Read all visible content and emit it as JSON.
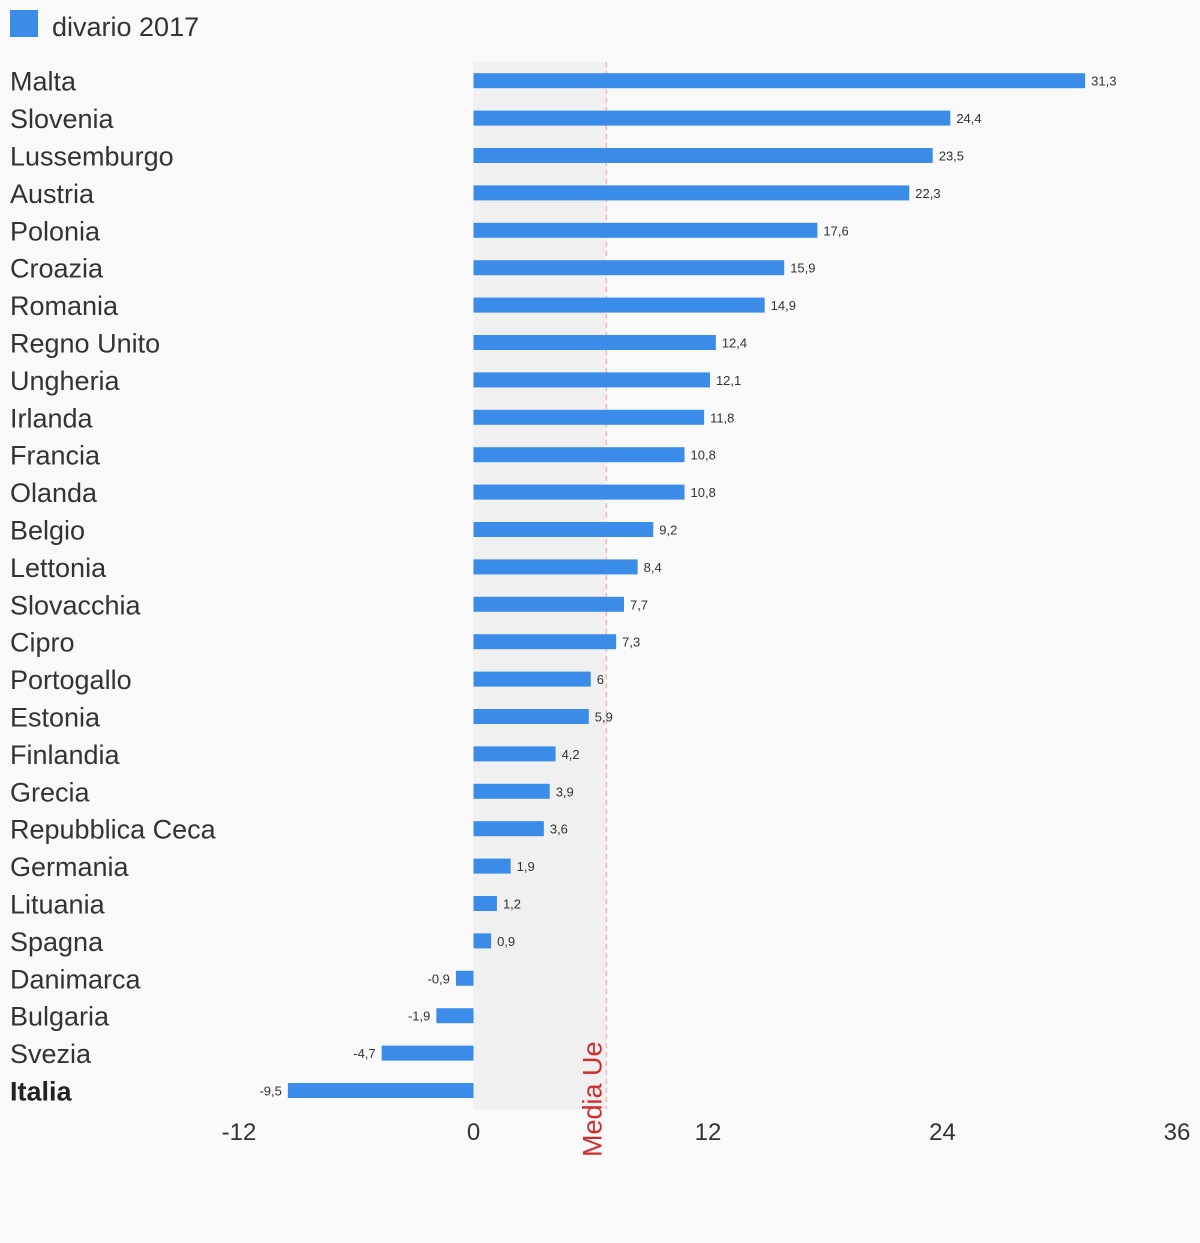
{
  "chart_data": {
    "type": "bar",
    "orientation": "horizontal",
    "legend": {
      "position": "top-left",
      "label": "divario 2017"
    },
    "series": [
      {
        "name": "divario 2017",
        "color": "#3a8ce8",
        "values": [
          31.3,
          24.4,
          23.5,
          22.3,
          17.6,
          15.9,
          14.9,
          12.4,
          12.1,
          11.8,
          10.8,
          10.8,
          9.2,
          8.4,
          7.7,
          7.3,
          6,
          5.9,
          4.2,
          3.9,
          3.6,
          1.9,
          1.2,
          0.9,
          -0.9,
          -1.9,
          -4.7,
          -9.5
        ],
        "labels": [
          "31,3",
          "24,4",
          "23,5",
          "22,3",
          "17,6",
          "15,9",
          "14,9",
          "12,4",
          "12,1",
          "11,8",
          "10,8",
          "10,8",
          "9,2",
          "8,4",
          "7,7",
          "7,3",
          "6",
          "5,9",
          "4,2",
          "3,9",
          "3,6",
          "1,9",
          "1,2",
          "0,9",
          "-0,9",
          "-1,9",
          "-4,7",
          "-9,5"
        ]
      }
    ],
    "categories": [
      "Malta",
      "Slovenia",
      "Lussemburgo",
      "Austria",
      "Polonia",
      "Croazia",
      "Romania",
      "Regno Unito",
      "Ungheria",
      "Irlanda",
      "Francia",
      "Olanda",
      "Belgio",
      "Lettonia",
      "Slovacchia",
      "Cipro",
      "Portogallo",
      "Estonia",
      "Finlandia",
      "Grecia",
      "Repubblica Ceca",
      "Germania",
      "Lituania",
      "Spagna",
      "Danimarca",
      "Bulgaria",
      "Svezia",
      "Italia"
    ],
    "highlight_category": "Italia",
    "xlim": [
      -12,
      36
    ],
    "xticks": [
      -12,
      0,
      12,
      24,
      36
    ],
    "xtick_labels": [
      "-12",
      "0",
      "12",
      "24",
      "36"
    ],
    "reference_line": {
      "value": 6.8,
      "label": "Media Ue",
      "color": "#d12b2b",
      "band_color": "#f0f0f0"
    },
    "grid": false
  }
}
